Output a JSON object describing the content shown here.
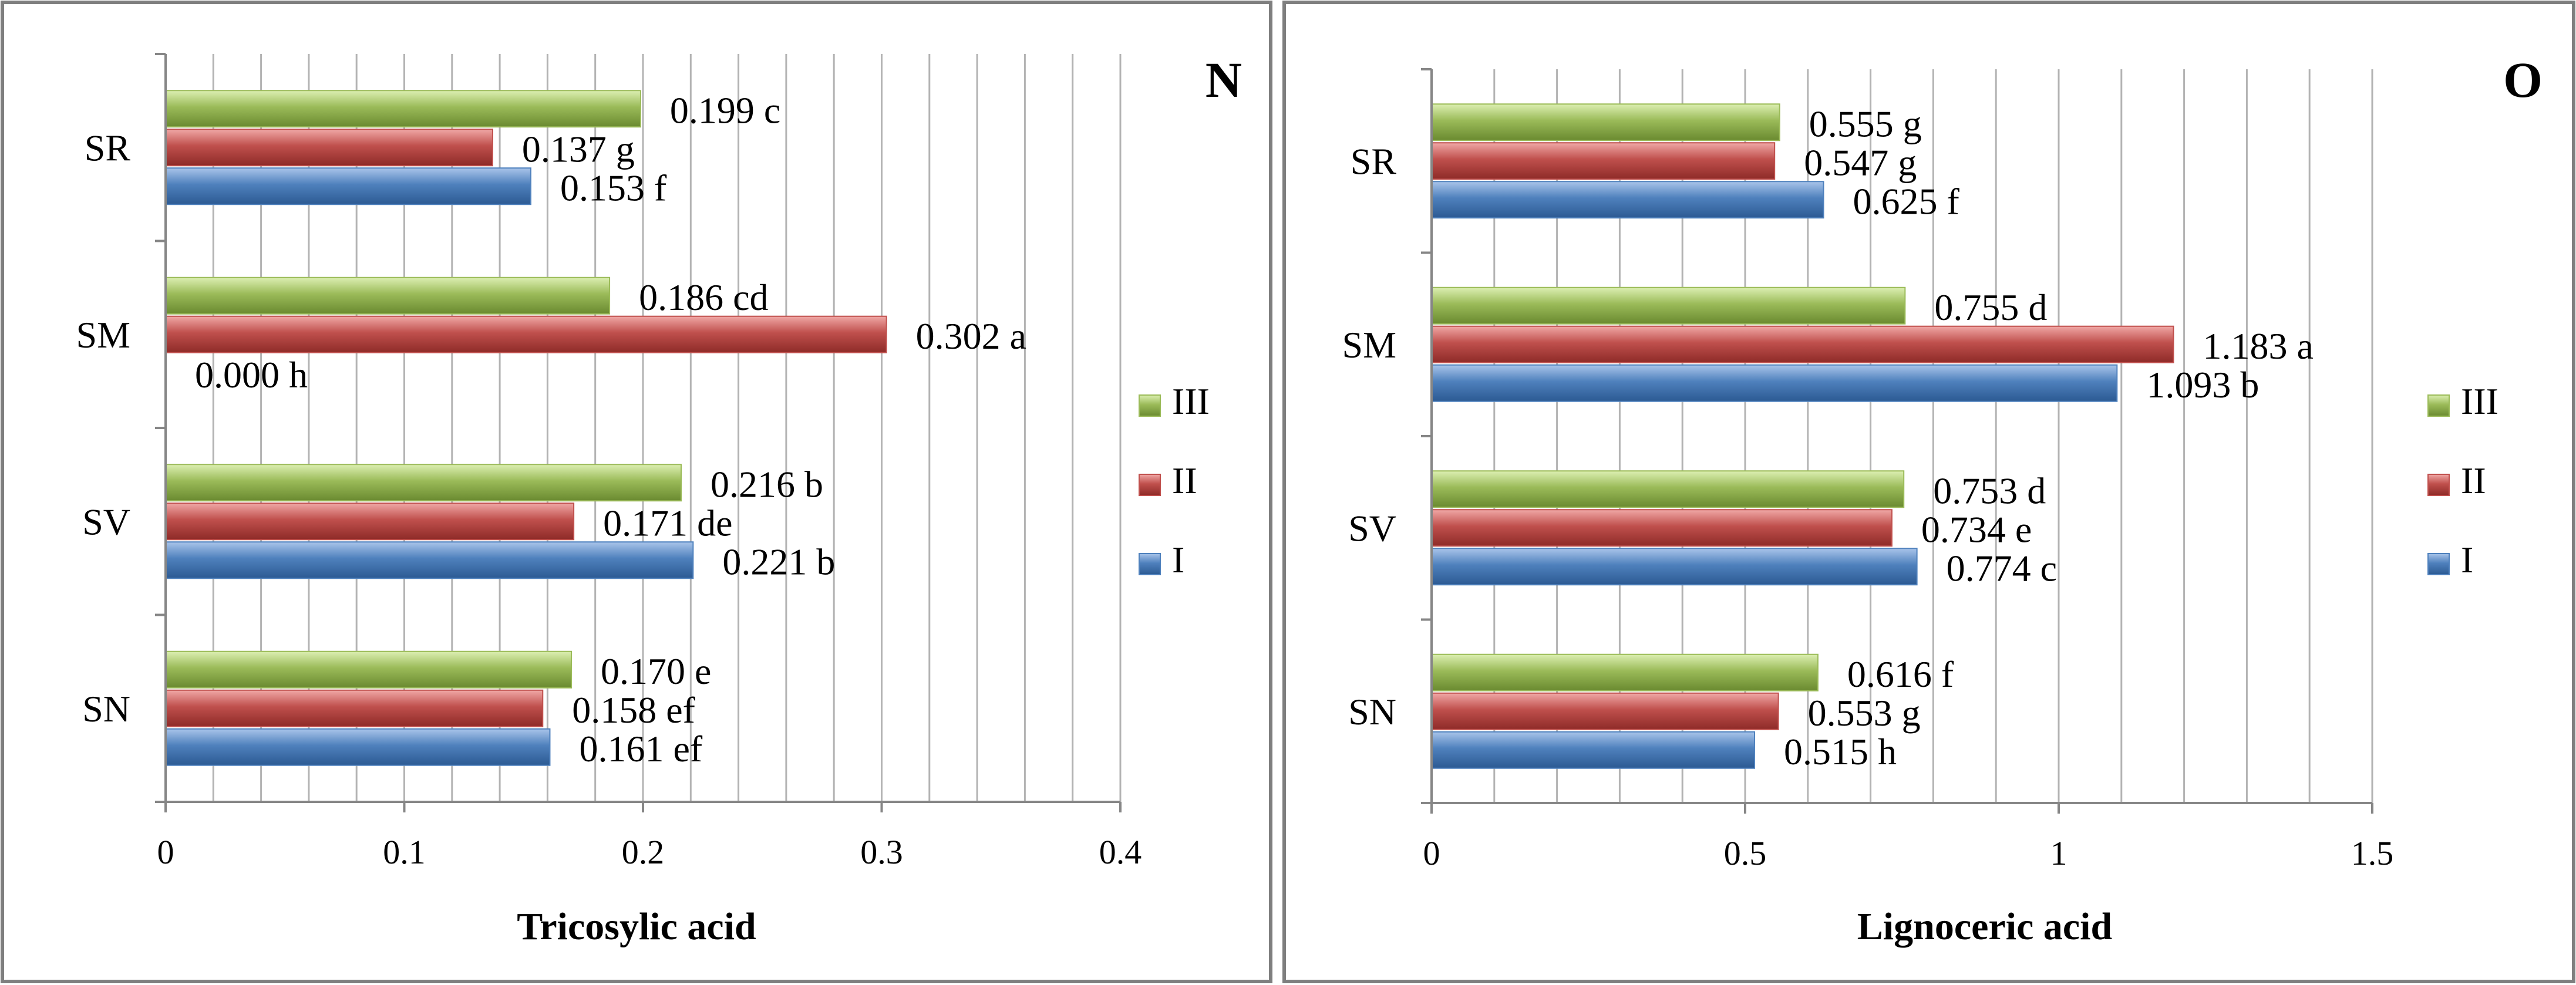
{
  "colors": {
    "I": "#4f81bd",
    "II": "#c0504d",
    "III": "#9bbb59"
  },
  "chart_data": [
    {
      "type": "bar",
      "orientation": "horizontal",
      "panel_letter": "N",
      "title": "",
      "xlabel": "Tricosylic acid",
      "ylabel": "",
      "xlim": [
        0,
        0.4
      ],
      "x_ticks": [
        0,
        0.1,
        0.2,
        0.3,
        0.4
      ],
      "x_tick_labels": [
        "0",
        "0.1",
        "0.2",
        "0.3",
        "0.4"
      ],
      "grid": "vertical minor lines",
      "legend_position": "right",
      "categories": [
        "SN",
        "SV",
        "SM",
        "SR"
      ],
      "series": [
        {
          "name": "I",
          "values": [
            0.161,
            0.221,
            0.0,
            0.153
          ],
          "labels": [
            "0.161 ef",
            "0.221 b",
            "0.000 h",
            "0.153 f"
          ]
        },
        {
          "name": "II",
          "values": [
            0.158,
            0.171,
            0.302,
            0.137
          ],
          "labels": [
            "0.158 ef",
            "0.171 de",
            "0.302 a",
            "0.137 g"
          ]
        },
        {
          "name": "III",
          "values": [
            0.17,
            0.216,
            0.186,
            0.199
          ],
          "labels": [
            "0.170 e",
            "0.216 b",
            "0.186 cd",
            "0.199 c"
          ]
        }
      ]
    },
    {
      "type": "bar",
      "orientation": "horizontal",
      "panel_letter": "O",
      "title": "",
      "xlabel": "Lignoceric acid",
      "ylabel": "",
      "xlim": [
        0,
        1.5
      ],
      "x_ticks": [
        0,
        0.5,
        1,
        1.5
      ],
      "x_tick_labels": [
        "0",
        "0.5",
        "1",
        "1.5"
      ],
      "grid": "vertical minor lines",
      "legend_position": "right",
      "categories": [
        "SN",
        "SV",
        "SM",
        "SR"
      ],
      "series": [
        {
          "name": "I",
          "values": [
            0.515,
            0.774,
            1.093,
            0.625
          ],
          "labels": [
            "0.515 h",
            "0.774 c",
            "1.093 b",
            "0.625 f"
          ]
        },
        {
          "name": "II",
          "values": [
            0.553,
            0.734,
            1.183,
            0.547
          ],
          "labels": [
            "0.553 g",
            "0.734 e",
            "1.183 a",
            "0.547 g"
          ]
        },
        {
          "name": "III",
          "values": [
            0.616,
            0.753,
            0.755,
            0.555
          ],
          "labels": [
            "0.616 f",
            "0.753 d",
            "0.755 d",
            "0.555 g"
          ]
        }
      ]
    }
  ]
}
